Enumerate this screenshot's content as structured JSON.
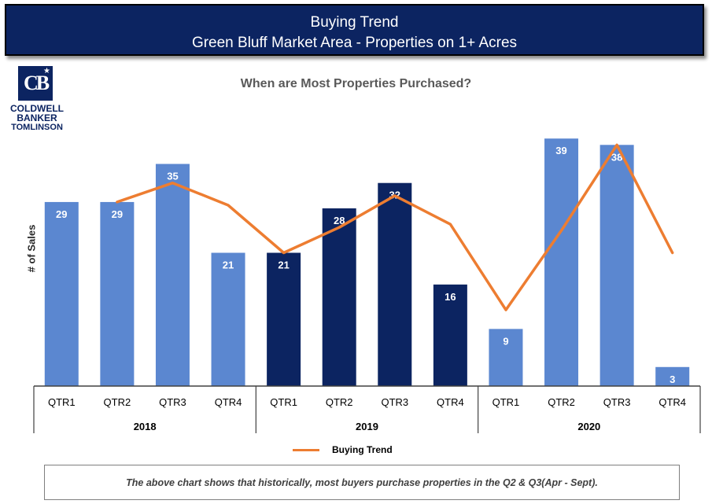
{
  "header": {
    "title": "Buying Trend",
    "subtitle": "Green Bluff Market Area - Properties on 1+ Acres"
  },
  "logo": {
    "line1": "COLDWELL",
    "line2": "BANKER",
    "line3": "TOMLINSON",
    "mark": "CB"
  },
  "chart_data": {
    "type": "bar",
    "title": "When are Most Properties Purchased?",
    "ylabel": "# of Sales",
    "xlabel": "",
    "ylim": [
      0,
      42
    ],
    "grid": false,
    "legend_position": "bottom",
    "groups": [
      {
        "name": "2018",
        "categories": [
          "QTR1",
          "QTR2",
          "QTR3",
          "QTR4"
        ],
        "values": [
          29,
          29,
          35,
          21
        ],
        "color": "#5b87d0"
      },
      {
        "name": "2019",
        "categories": [
          "QTR1",
          "QTR2",
          "QTR3",
          "QTR4"
        ],
        "values": [
          21,
          28,
          32,
          16
        ],
        "color": "#0c2461"
      },
      {
        "name": "2020",
        "categories": [
          "QTR1",
          "QTR2",
          "QTR3",
          "QTR4"
        ],
        "values": [
          9,
          39,
          38,
          3
        ],
        "color": "#5b87d0"
      }
    ],
    "trend": {
      "name": "Buying Trend",
      "color": "#ed7d31",
      "values": [
        null,
        29,
        32,
        28.5,
        21,
        25,
        30,
        25.5,
        12,
        24.5,
        38,
        21
      ]
    }
  },
  "legend": {
    "label": "Buying Trend",
    "color": "#ed7d31"
  },
  "footer": {
    "note": "The above chart shows that historically, most buyers purchase properties in the Q2 & Q3(Apr - Sept)."
  }
}
